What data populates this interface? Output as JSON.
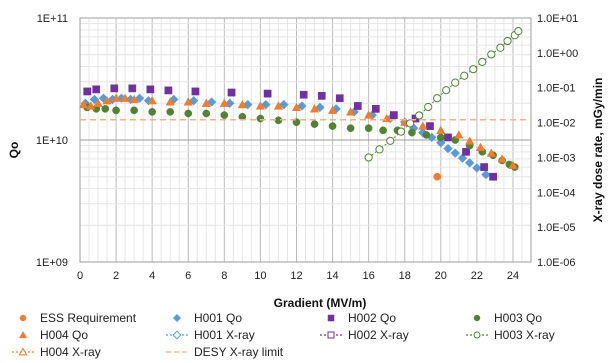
{
  "chart_data": {
    "type": "scatter",
    "xlabel": "Gradient (MV/m)",
    "ylabel": "Qo",
    "y2label": "X-ray dose rate, mGy/min",
    "xlim": [
      0,
      25
    ],
    "ylim": [
      1000000000,
      100000000000
    ],
    "y2lim": [
      1e-06,
      10
    ],
    "y_scale": "log",
    "y2_scale": "log",
    "grid": true,
    "legend_position": "bottom",
    "x_ticks": [
      "0",
      "2",
      "4",
      "6",
      "8",
      "10",
      "12",
      "14",
      "16",
      "18",
      "20",
      "22",
      "24"
    ],
    "y_ticks": [
      "1E+09",
      "1E+10",
      "1E+11"
    ],
    "y2_ticks": [
      "1.0E-06",
      "1.0E-05",
      "1.0E-04",
      "1.0E-03",
      "1.0E-02",
      "1.0E-01",
      "1.0E+00",
      "1.0E+01"
    ],
    "series": [
      {
        "name": "ESS Requirement",
        "axis": "left",
        "marker": "circle",
        "color": "#ed7d31",
        "filled": true,
        "points": [
          [
            19.8,
            5000000000
          ]
        ]
      },
      {
        "name": "H001 Qo",
        "axis": "left",
        "marker": "diamond",
        "color": "#5b9bd5",
        "filled": true,
        "points": [
          [
            0.3,
            20000000000
          ],
          [
            0.8,
            21500000000
          ],
          [
            1.3,
            22000000000
          ],
          [
            1.8,
            21500000000
          ],
          [
            2.3,
            22000000000
          ],
          [
            2.8,
            21500000000
          ],
          [
            3.3,
            22000000000
          ],
          [
            3.8,
            21000000000
          ],
          [
            5.2,
            21500000000
          ],
          [
            6.3,
            21000000000
          ],
          [
            7.3,
            20500000000
          ],
          [
            8.3,
            20000000000
          ],
          [
            9.3,
            19500000000
          ],
          [
            10.3,
            19500000000
          ],
          [
            11.3,
            19500000000
          ],
          [
            12.3,
            19000000000
          ],
          [
            13.3,
            18500000000
          ],
          [
            14.2,
            18000000000
          ],
          [
            15.2,
            17000000000
          ],
          [
            16.2,
            16000000000
          ],
          [
            17.2,
            15000000000
          ],
          [
            18.0,
            14000000000
          ],
          [
            18.5,
            12500000000
          ],
          [
            19.0,
            11500000000
          ],
          [
            19.5,
            10500000000
          ],
          [
            20.0,
            9500000000
          ],
          [
            20.4,
            8500000000
          ],
          [
            20.8,
            7800000000
          ],
          [
            21.2,
            7100000000
          ],
          [
            21.6,
            6500000000
          ],
          [
            22.0,
            5900000000
          ],
          [
            22.5,
            5200000000
          ]
        ]
      },
      {
        "name": "H002 Qo",
        "axis": "left",
        "marker": "square",
        "color": "#7030a0",
        "filled": true,
        "points": [
          [
            0.4,
            25000000000
          ],
          [
            0.9,
            26000000000
          ],
          [
            1.9,
            26500000000
          ],
          [
            2.9,
            26500000000
          ],
          [
            3.9,
            26000000000
          ],
          [
            4.9,
            25500000000
          ],
          [
            6.4,
            25000000000
          ],
          [
            8.4,
            24500000000
          ],
          [
            10.4,
            24000000000
          ],
          [
            12.4,
            23500000000
          ],
          [
            13.4,
            23000000000
          ],
          [
            14.4,
            22000000000
          ],
          [
            15.4,
            19000000000
          ],
          [
            16.4,
            18000000000
          ],
          [
            17.4,
            16000000000
          ],
          [
            18.6,
            15000000000
          ],
          [
            19.4,
            13000000000
          ],
          [
            20.4,
            10500000000
          ],
          [
            21.4,
            8000000000
          ],
          [
            22.4,
            6000000000
          ],
          [
            22.9,
            5000000000
          ]
        ]
      },
      {
        "name": "H003 Qo",
        "axis": "left",
        "marker": "circle",
        "color": "#548235",
        "filled": true,
        "points": [
          [
            0.4,
            18500000000
          ],
          [
            0.9,
            18000000000
          ],
          [
            1.4,
            18000000000
          ],
          [
            2.0,
            17500000000
          ],
          [
            3.0,
            17500000000
          ],
          [
            4.0,
            17000000000
          ],
          [
            5.0,
            17000000000
          ],
          [
            6.0,
            16500000000
          ],
          [
            7.0,
            16500000000
          ],
          [
            8.0,
            16000000000
          ],
          [
            9.0,
            15500000000
          ],
          [
            10.0,
            15000000000
          ],
          [
            11.0,
            14500000000
          ],
          [
            12.0,
            14000000000
          ],
          [
            13.0,
            13500000000
          ],
          [
            14.0,
            13000000000
          ],
          [
            15.0,
            12500000000
          ],
          [
            16.0,
            12500000000
          ],
          [
            16.8,
            12000000000
          ],
          [
            17.6,
            12000000000
          ],
          [
            18.4,
            11500000000
          ],
          [
            19.2,
            11000000000
          ],
          [
            20.0,
            10500000000
          ],
          [
            20.8,
            10000000000
          ],
          [
            21.6,
            9000000000
          ],
          [
            22.3,
            8000000000
          ],
          [
            22.9,
            7500000000
          ],
          [
            23.4,
            6800000000
          ],
          [
            23.8,
            6300000000
          ],
          [
            24.1,
            6000000000
          ]
        ]
      },
      {
        "name": "H004 Qo",
        "axis": "left",
        "marker": "triangle",
        "color": "#ed7d31",
        "filled": true,
        "points": [
          [
            0.2,
            19500000000
          ],
          [
            0.6,
            19000000000
          ],
          [
            1.0,
            20000000000
          ],
          [
            1.5,
            21000000000
          ],
          [
            2.0,
            22000000000
          ],
          [
            2.5,
            22000000000
          ],
          [
            3.0,
            21500000000
          ],
          [
            4.0,
            21000000000
          ],
          [
            5.0,
            20500000000
          ],
          [
            6.0,
            20500000000
          ],
          [
            7.0,
            20000000000
          ],
          [
            8.0,
            20000000000
          ],
          [
            9.0,
            19500000000
          ],
          [
            10.0,
            19000000000
          ],
          [
            11.0,
            19000000000
          ],
          [
            12.0,
            18500000000
          ],
          [
            13.0,
            18000000000
          ],
          [
            14.0,
            17500000000
          ],
          [
            15.0,
            17000000000
          ],
          [
            16.0,
            16000000000
          ],
          [
            17.0,
            15000000000
          ],
          [
            18.0,
            14000000000
          ],
          [
            19.0,
            13000000000
          ],
          [
            20.0,
            12000000000
          ],
          [
            21.0,
            11000000000
          ],
          [
            21.6,
            9800000000
          ],
          [
            22.2,
            8700000000
          ],
          [
            22.8,
            7800000000
          ],
          [
            23.4,
            7000000000
          ],
          [
            24.0,
            6200000000
          ]
        ]
      },
      {
        "name": "H001 X-ray",
        "axis": "right",
        "marker": "diamond",
        "color": "#5b9bd5",
        "filled": false,
        "line": "dotted",
        "points": []
      },
      {
        "name": "H002 X-ray",
        "axis": "right",
        "marker": "square",
        "color": "#7030a0",
        "filled": false,
        "line": "dotted",
        "points": []
      },
      {
        "name": "H003 X-ray",
        "axis": "right",
        "marker": "circle",
        "color": "#548235",
        "filled": false,
        "line": "dotted",
        "points": [
          [
            16.0,
            0.001
          ],
          [
            16.6,
            0.0017
          ],
          [
            17.2,
            0.003
          ],
          [
            17.8,
            0.0055
          ],
          [
            18.3,
            0.0095
          ],
          [
            18.8,
            0.016
          ],
          [
            19.3,
            0.028
          ],
          [
            19.8,
            0.05
          ],
          [
            20.3,
            0.085
          ],
          [
            20.8,
            0.14
          ],
          [
            21.3,
            0.22
          ],
          [
            21.8,
            0.34
          ],
          [
            22.3,
            0.55
          ],
          [
            22.8,
            0.9
          ],
          [
            23.3,
            1.4
          ],
          [
            23.7,
            2.2
          ],
          [
            24.1,
            3.2
          ],
          [
            24.3,
            4.2
          ]
        ]
      },
      {
        "name": "H004 X-ray",
        "axis": "right",
        "marker": "triangle",
        "color": "#ed7d31",
        "filled": false,
        "line": "dotted",
        "points": []
      },
      {
        "name": "DESY X-ray limit",
        "axis": "right",
        "marker": "none",
        "color": "#f4b183",
        "filled": false,
        "line": "dashed",
        "points": [
          [
            0,
            0.012
          ],
          [
            25,
            0.012
          ]
        ]
      }
    ]
  }
}
